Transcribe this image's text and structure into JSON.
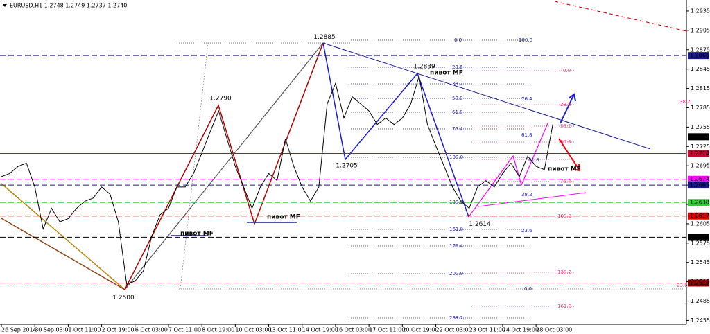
{
  "chart_data": {
    "type": "line",
    "title": "EURUSD,H1 1.2748 1.2749 1.2737 1.2740",
    "series": [
      {
        "name": "EURUSD",
        "color": "#000000",
        "values": [
          1.2678,
          1.2683,
          1.2694,
          1.2699,
          1.2662,
          1.2597,
          1.2629,
          1.2608,
          1.2613,
          1.2629,
          1.264,
          1.2645,
          1.2662,
          1.2651,
          1.2608,
          1.2511,
          1.2516,
          1.2532,
          1.2586,
          1.2619,
          1.2629,
          1.2662,
          1.2662,
          1.2683,
          1.2715,
          1.2748,
          1.278,
          1.2737,
          1.2694,
          1.2662,
          1.2629,
          1.2662,
          1.2683,
          1.2672,
          1.2737,
          1.2694,
          1.2662,
          1.264,
          1.2662,
          1.2791,
          1.2823,
          1.2769,
          1.2802,
          1.2791,
          1.278,
          1.2759,
          1.2769,
          1.2759,
          1.2769,
          1.2791,
          1.2834,
          1.2759,
          1.2726,
          1.2694,
          1.2662,
          1.264,
          1.2629,
          1.2662,
          1.2672,
          1.2662,
          1.2683,
          1.2699,
          1.2678,
          1.271,
          1.2694,
          1.2689,
          1.2759
        ]
      }
    ],
    "xlim": [
      0,
      82
    ],
    "xticks": [
      {
        "value": 0,
        "label": "26 Sep 2014"
      },
      {
        "value": 4,
        "label": "30 Sep 03:00"
      },
      {
        "value": 8,
        "label": "1 Oct 11:00"
      },
      {
        "value": 12,
        "label": "2 Oct 19:00"
      },
      {
        "value": 16,
        "label": "6 Oct 03:00"
      },
      {
        "value": 20,
        "label": "7 Oct 11:00"
      },
      {
        "value": 24,
        "label": "8 Oct 19:00"
      },
      {
        "value": 28,
        "label": "10 Oct 03:00"
      },
      {
        "value": 32,
        "label": "13 Oct 11:00"
      },
      {
        "value": 36,
        "label": "14 Oct 19:00"
      },
      {
        "value": 40,
        "label": "16 Oct 03:00"
      },
      {
        "value": 44,
        "label": "17 Oct 11:00"
      },
      {
        "value": 48,
        "label": "20 Oct 19:00"
      },
      {
        "value": 52,
        "label": "22 Oct 03:00"
      },
      {
        "value": 56,
        "label": "23 Oct 11:00"
      },
      {
        "value": 60,
        "label": "24 Oct 19:00"
      },
      {
        "value": 64,
        "label": "28 Oct 03:00"
      }
    ],
    "ylim": [
      1.2449,
      1.295
    ],
    "yticks": [
      1.2455,
      1.2485,
      1.2515,
      1.2545,
      1.2575,
      1.2605,
      1.2635,
      1.2665,
      1.2695,
      1.2725,
      1.2755,
      1.2785,
      1.2815,
      1.2845,
      1.2875,
      1.2905,
      1.2935
    ],
    "levels": [
      {
        "value": 1.2866,
        "label": "1.2866",
        "color": "#1a1a8c",
        "style": "dashed"
      },
      {
        "value": 1.274,
        "label": "1.2740",
        "color": "#000000",
        "style": "none"
      },
      {
        "value": 1.2714,
        "label": "1.2714",
        "color": "#cc0033",
        "style": "solid"
      },
      {
        "value": 1.2674,
        "label": "1.2674",
        "color": "#ff00ff",
        "style": "dashed"
      },
      {
        "value": 1.2665,
        "label": "1.2665",
        "color": "#1a1a8c",
        "style": "dashed"
      },
      {
        "value": 1.2638,
        "label": "1.2638",
        "color": "#33cc33",
        "style": "dashed"
      },
      {
        "value": 1.2617,
        "label": "1.2617",
        "color": "#dd0000",
        "style": "dashed"
      },
      {
        "value": 1.2584,
        "label": "1.2584",
        "color": "#000000",
        "style": "dashed"
      },
      {
        "value": 1.2513,
        "label": "1.2513",
        "color": "#8b0000",
        "style": "dashed"
      }
    ],
    "swings": [
      {
        "value": 1.2885,
        "label": "1.2885"
      },
      {
        "value": 1.2839,
        "label": "1.2839"
      },
      {
        "value": 1.279,
        "label": "1.2790"
      },
      {
        "value": 1.2705,
        "label": "1.2705"
      },
      {
        "value": 1.2614,
        "label": "1.2614"
      },
      {
        "value": 1.25,
        "label": "1.2500"
      }
    ],
    "annotations": [
      "0.0",
      "100.0",
      "23.6",
      "38.2",
      "50.0",
      "61.8",
      "76.4",
      "100.0",
      "138.2",
      "161.8",
      "176.4",
      "200.0",
      "238.2",
      "76.4",
      "61.8",
      "61.8",
      "38.2",
      "23.6",
      "0.0",
      "0.0",
      "23.6",
      "38.2",
      "50.0",
      "76.4",
      "100.0",
      "138.2",
      "161.8",
      "38.2",
      "23.6",
      "пивот MF",
      "пивот MF",
      "пивот MF",
      "пивот MF"
    ]
  }
}
